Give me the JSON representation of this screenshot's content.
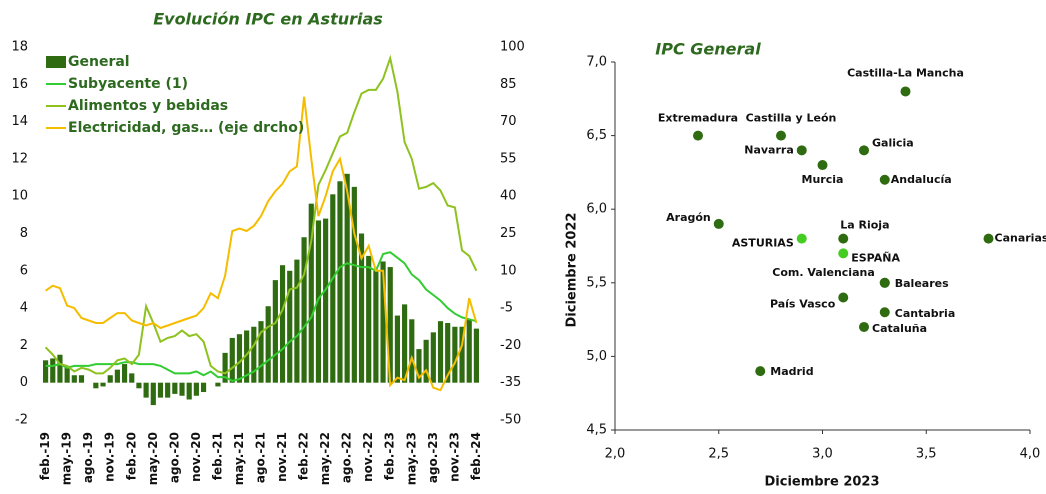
{
  "chart_data": [
    {
      "type": "bar_line",
      "title": "Evolución IPC en Asturias",
      "categories": [
        "feb.-19",
        null,
        null,
        "may.-19",
        null,
        null,
        "ago.-19",
        null,
        null,
        "nov.-19",
        null,
        null,
        "feb.-20",
        null,
        null,
        "may.-20",
        null,
        null,
        "ago.-20",
        null,
        null,
        "nov.-20",
        null,
        null,
        "feb.-21",
        null,
        null,
        "may.-21",
        null,
        null,
        "ago.-21",
        null,
        null,
        "nov.-21",
        null,
        null,
        "feb.-22",
        null,
        null,
        "may.-22",
        null,
        null,
        "ago.-22",
        null,
        null,
        "nov.-22",
        null,
        null,
        "feb.-23",
        null,
        null,
        "may.-23",
        null,
        null,
        "ago.-23",
        null,
        null,
        "nov.-23",
        null,
        null,
        "feb.-24"
      ],
      "ylim": [
        -2,
        18
      ],
      "yticks": [
        -2,
        0,
        2,
        4,
        6,
        8,
        10,
        12,
        14,
        16,
        18
      ],
      "y2lim": [
        -50,
        100
      ],
      "y2ticks": [
        -50,
        -35,
        -20,
        -5,
        10,
        25,
        40,
        55,
        70,
        85,
        100
      ],
      "series": [
        {
          "name": "General",
          "kind": "bar",
          "color": "#2f6b10",
          "values": [
            1.2,
            1.3,
            1.5,
            0.9,
            0.4,
            0.4,
            0.0,
            -0.3,
            -0.2,
            0.4,
            0.7,
            1.0,
            0.5,
            -0.3,
            -0.8,
            -1.2,
            -0.8,
            -0.8,
            -0.6,
            -0.7,
            -0.9,
            -0.7,
            -0.5,
            0.0,
            -0.2,
            1.6,
            2.4,
            2.6,
            2.8,
            3.0,
            3.3,
            4.1,
            5.5,
            6.3,
            6.0,
            6.6,
            7.8,
            9.6,
            8.7,
            8.8,
            10.1,
            10.8,
            11.2,
            10.5,
            8.0,
            6.8,
            6.0,
            6.5,
            6.2,
            3.6,
            4.2,
            3.4,
            1.8,
            2.3,
            2.7,
            3.3,
            3.2,
            3.0,
            3.0,
            3.4,
            2.9
          ]
        },
        {
          "name": "Subyacente (1)",
          "kind": "line",
          "color": "#33cc33",
          "values": [
            0.9,
            0.9,
            1.0,
            0.8,
            0.9,
            0.9,
            0.9,
            1.0,
            1.0,
            1.0,
            1.0,
            1.1,
            1.1,
            1.0,
            1.0,
            1.0,
            0.9,
            0.7,
            0.5,
            0.5,
            0.5,
            0.6,
            0.4,
            0.6,
            0.3,
            0.3,
            0.1,
            0.2,
            0.4,
            0.6,
            0.9,
            1.2,
            1.5,
            1.8,
            2.2,
            2.5,
            3.0,
            3.5,
            4.5,
            5.0,
            5.6,
            6.2,
            6.4,
            6.3,
            6.2,
            6.2,
            6.0,
            6.9,
            7.0,
            6.7,
            6.4,
            5.8,
            5.5,
            5.0,
            4.7,
            4.4,
            4.0,
            3.7,
            3.5,
            3.4,
            3.3
          ]
        },
        {
          "name": "Alimentos y bebidas",
          "kind": "line",
          "color": "#8dc21f",
          "values": [
            1.9,
            1.5,
            1.0,
            0.9,
            0.6,
            0.8,
            0.7,
            0.5,
            0.5,
            0.8,
            1.2,
            1.3,
            1.0,
            1.5,
            4.1,
            3.2,
            2.2,
            2.4,
            2.5,
            2.8,
            2.5,
            2.6,
            2.2,
            0.9,
            0.6,
            0.5,
            0.8,
            1.1,
            1.5,
            2.0,
            2.7,
            3.0,
            3.2,
            3.9,
            5.0,
            5.1,
            5.8,
            7.6,
            10.6,
            11.4,
            12.3,
            13.2,
            13.4,
            14.5,
            15.5,
            15.7,
            15.7,
            16.3,
            17.4,
            15.6,
            12.9,
            12.0,
            10.4,
            10.5,
            10.7,
            10.3,
            9.5,
            9.4,
            7.1,
            6.8,
            6.0
          ]
        },
        {
          "name": "Electricidad, gas… (eje drcho)",
          "kind": "line",
          "axis": "y2",
          "color": "#f5bd00",
          "values": [
            2,
            4,
            3,
            -4,
            -5,
            -9,
            -10,
            -11,
            -11,
            -9,
            -7,
            -7,
            -10,
            -11,
            -12,
            -11,
            -13,
            -12,
            -11,
            -10,
            -9,
            -8,
            -5,
            1,
            -1,
            8,
            26,
            27,
            26,
            28,
            32,
            38,
            42,
            45,
            50,
            52,
            80,
            55,
            32,
            40,
            50,
            55,
            42,
            25,
            15,
            20,
            10,
            10,
            -36,
            -33,
            -34,
            -25,
            -33,
            -30,
            -37,
            -38,
            -32,
            -27,
            -20,
            -1,
            -11
          ]
        }
      ]
    },
    {
      "type": "scatter",
      "title": "IPC General",
      "x_label": "Diciembre 2023",
      "y_label": "Diciembre 2022",
      "xlim": [
        2,
        4
      ],
      "xticks": [
        {
          "value": 2,
          "label": "2,0"
        },
        {
          "value": 2.5,
          "label": "2,5"
        },
        {
          "value": 3,
          "label": "3,0"
        },
        {
          "value": 3.5,
          "label": "3,5"
        },
        {
          "value": 4,
          "label": "4,0"
        }
      ],
      "ylim": [
        4.5,
        7
      ],
      "yticks": [
        {
          "value": 4.5,
          "label": "4,5"
        },
        {
          "value": 5,
          "label": "5,0"
        },
        {
          "value": 5.5,
          "label": "5,5"
        },
        {
          "value": 6,
          "label": "6,0"
        },
        {
          "value": 6.5,
          "label": "6,5"
        },
        {
          "value": 7,
          "label": "7,0"
        }
      ],
      "points": [
        {
          "label": "Castilla-La Mancha",
          "x": 3.4,
          "y": 6.8,
          "color": "#2f6b10"
        },
        {
          "label": "Extremadura",
          "x": 2.4,
          "y": 6.5,
          "color": "#2f6b10"
        },
        {
          "label": "Castilla y León",
          "x": 2.8,
          "y": 6.5,
          "color": "#2f6b10"
        },
        {
          "label": "Galicia",
          "x": 3.2,
          "y": 6.4,
          "color": "#2f6b10"
        },
        {
          "label": "Navarra",
          "x": 2.9,
          "y": 6.4,
          "color": "#2f6b10"
        },
        {
          "label": "Murcia",
          "x": 3.0,
          "y": 6.3,
          "color": "#2f6b10"
        },
        {
          "label": "Andalucía",
          "x": 3.3,
          "y": 6.2,
          "color": "#2f6b10"
        },
        {
          "label": "Aragón",
          "x": 2.5,
          "y": 5.9,
          "color": "#2f6b10"
        },
        {
          "label": "La Rioja",
          "x": 3.1,
          "y": 5.8,
          "color": "#2f6b10"
        },
        {
          "label": "ASTURIAS",
          "x": 2.9,
          "y": 5.8,
          "color": "#44cc22"
        },
        {
          "label": "ESPAÑA",
          "x": 3.1,
          "y": 5.7,
          "color": "#44cc22"
        },
        {
          "label": "Canarias",
          "x": 3.8,
          "y": 5.8,
          "color": "#2f6b10"
        },
        {
          "label": "Com. Valenciana",
          "x": 3.3,
          "y": 5.5,
          "color": "#2f6b10"
        },
        {
          "label": "Baleares",
          "x": 3.3,
          "y": 5.5,
          "color": "#2f6b10"
        },
        {
          "label": "País Vasco",
          "x": 3.1,
          "y": 5.4,
          "color": "#2f6b10"
        },
        {
          "label": "Cantabria",
          "x": 3.3,
          "y": 5.3,
          "color": "#2f6b10"
        },
        {
          "label": "Cataluña",
          "x": 3.2,
          "y": 5.2,
          "color": "#2f6b10"
        },
        {
          "label": "Madrid",
          "x": 2.7,
          "y": 4.9,
          "color": "#2f6b10"
        }
      ]
    }
  ]
}
